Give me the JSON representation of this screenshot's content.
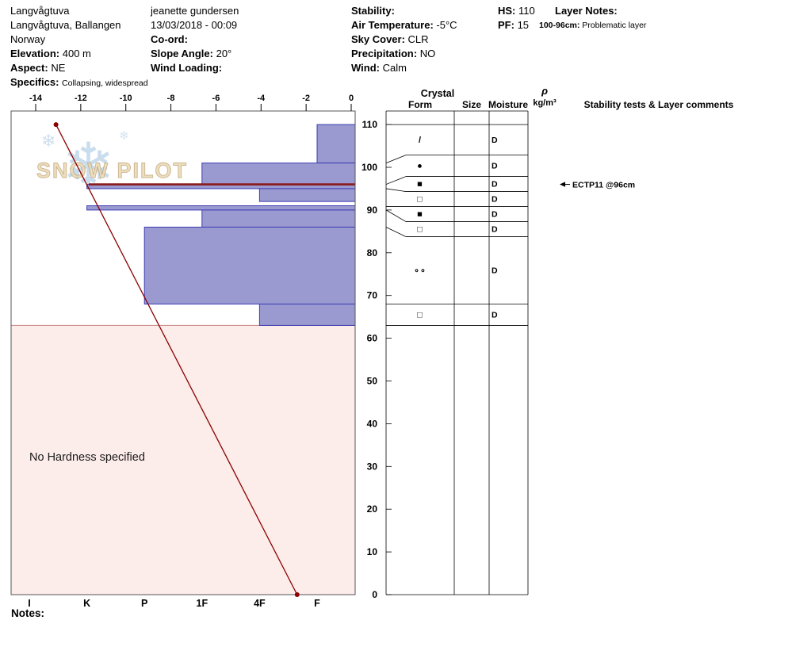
{
  "header": {
    "location": {
      "name": "Langvågtuva",
      "area": "Langvågtuva, Ballangen",
      "country": "Norway",
      "elevation_label": "Elevation:",
      "elevation_value": "400 m",
      "aspect_label": "Aspect:",
      "aspect_value": "NE",
      "specifics_label": "Specifics:",
      "specifics_value": "Collapsing, widespread"
    },
    "observer": {
      "name": "jeanette gundersen",
      "datetime": "13/03/2018 - 00:09",
      "coord_label": "Co-ord:",
      "slope_angle_label": "Slope Angle:",
      "slope_angle_value": "20°",
      "wind_loading_label": "Wind Loading:"
    },
    "conditions": {
      "stability_label": "Stability:",
      "air_temp_label": "Air Temperature:",
      "air_temp_value": "-5°C",
      "sky_label": "Sky Cover:",
      "sky_value": "CLR",
      "precip_label": "Precipitation:",
      "precip_value": "NO",
      "wind_label": "Wind:",
      "wind_value": "Calm"
    },
    "totals": {
      "hs_label": "HS:",
      "hs_value": "110",
      "pf_label": "PF:",
      "pf_value": "15"
    },
    "layer_notes": {
      "title": "Layer Notes:",
      "items": [
        {
          "range": "100-96cm:",
          "text": "Problematic layer"
        }
      ]
    }
  },
  "chart_data": {
    "type": "snow-profile",
    "temperature_axis": {
      "unit": "°C",
      "ticks": [
        -14,
        -12,
        -10,
        -8,
        -6,
        -4,
        -2,
        0
      ]
    },
    "hardness_axis": {
      "ticks": [
        "I",
        "K",
        "P",
        "1F",
        "4F",
        "F"
      ]
    },
    "depth_axis": {
      "unit": "cm",
      "ticks": [
        110,
        100,
        90,
        80,
        70,
        60,
        50,
        40,
        30,
        20,
        10,
        0
      ],
      "range": [
        0,
        113
      ]
    },
    "snow_height_cm": 110,
    "temperature_profile": [
      {
        "depth_cm": 110,
        "temp_c": -13.1
      },
      {
        "depth_cm": 0,
        "temp_c": -2.4
      }
    ],
    "layers": [
      {
        "top_cm": 110,
        "bottom_cm": 101,
        "hardness": "F",
        "form_glyph": "/",
        "grain_form": "DF",
        "moisture": "D"
      },
      {
        "top_cm": 101,
        "bottom_cm": 96,
        "hardness": "1F",
        "form_glyph": "●",
        "grain_form": "RG",
        "moisture": "D"
      },
      {
        "top_cm": 96,
        "bottom_cm": 95,
        "hardness": "K",
        "form_glyph": "■",
        "grain_form": "MFcr",
        "moisture": "D"
      },
      {
        "top_cm": 95,
        "bottom_cm": 92,
        "hardness": "4F",
        "form_glyph": "□",
        "grain_form": "FC",
        "moisture": "D"
      },
      {
        "top_cm": 91,
        "bottom_cm": 90,
        "hardness": "K",
        "form_glyph": "■",
        "grain_form": "MFcr",
        "moisture": "D"
      },
      {
        "top_cm": 90,
        "bottom_cm": 86,
        "hardness": "1F",
        "form_glyph": "□",
        "grain_form": "FC",
        "moisture": "D"
      },
      {
        "top_cm": 86,
        "bottom_cm": 68,
        "hardness": "P",
        "form_glyph": "∘∘",
        "grain_form": "RG",
        "moisture": "D"
      },
      {
        "top_cm": 68,
        "bottom_cm": 63,
        "hardness": "4F",
        "form_glyph": "□",
        "grain_form": "FC",
        "moisture": "D"
      }
    ],
    "problematic_layer_depth_cm": 96,
    "no_hardness": {
      "from_cm": 63,
      "to_cm": 0,
      "label": "No Hardness specified"
    },
    "table": {
      "crystal_header": "Crystal",
      "columns": [
        "Form",
        "Size",
        "Moisture"
      ],
      "density_symbol": "ρ",
      "density_unit": "kg/m³",
      "tests_header": "Stability tests & Layer comments"
    },
    "tests": [
      {
        "depth_cm": 96,
        "label": "ECTP11 @96cm"
      }
    ],
    "watermark": "SNOW PILOT",
    "colors": {
      "bar_fill": "#9a9ad0",
      "bar_stroke": "#3c3cb4",
      "temp_line": "#8b0000",
      "problem_line": "#8b1a1a",
      "no_hardness_fill": "#fcecea",
      "no_hardness_edge": "#d08f8f",
      "flake": "#b9d2e8",
      "watermark_fill": "#ead9b5",
      "watermark_stroke": "#c3a878"
    }
  },
  "footer": {
    "notes_label": "Notes:"
  }
}
